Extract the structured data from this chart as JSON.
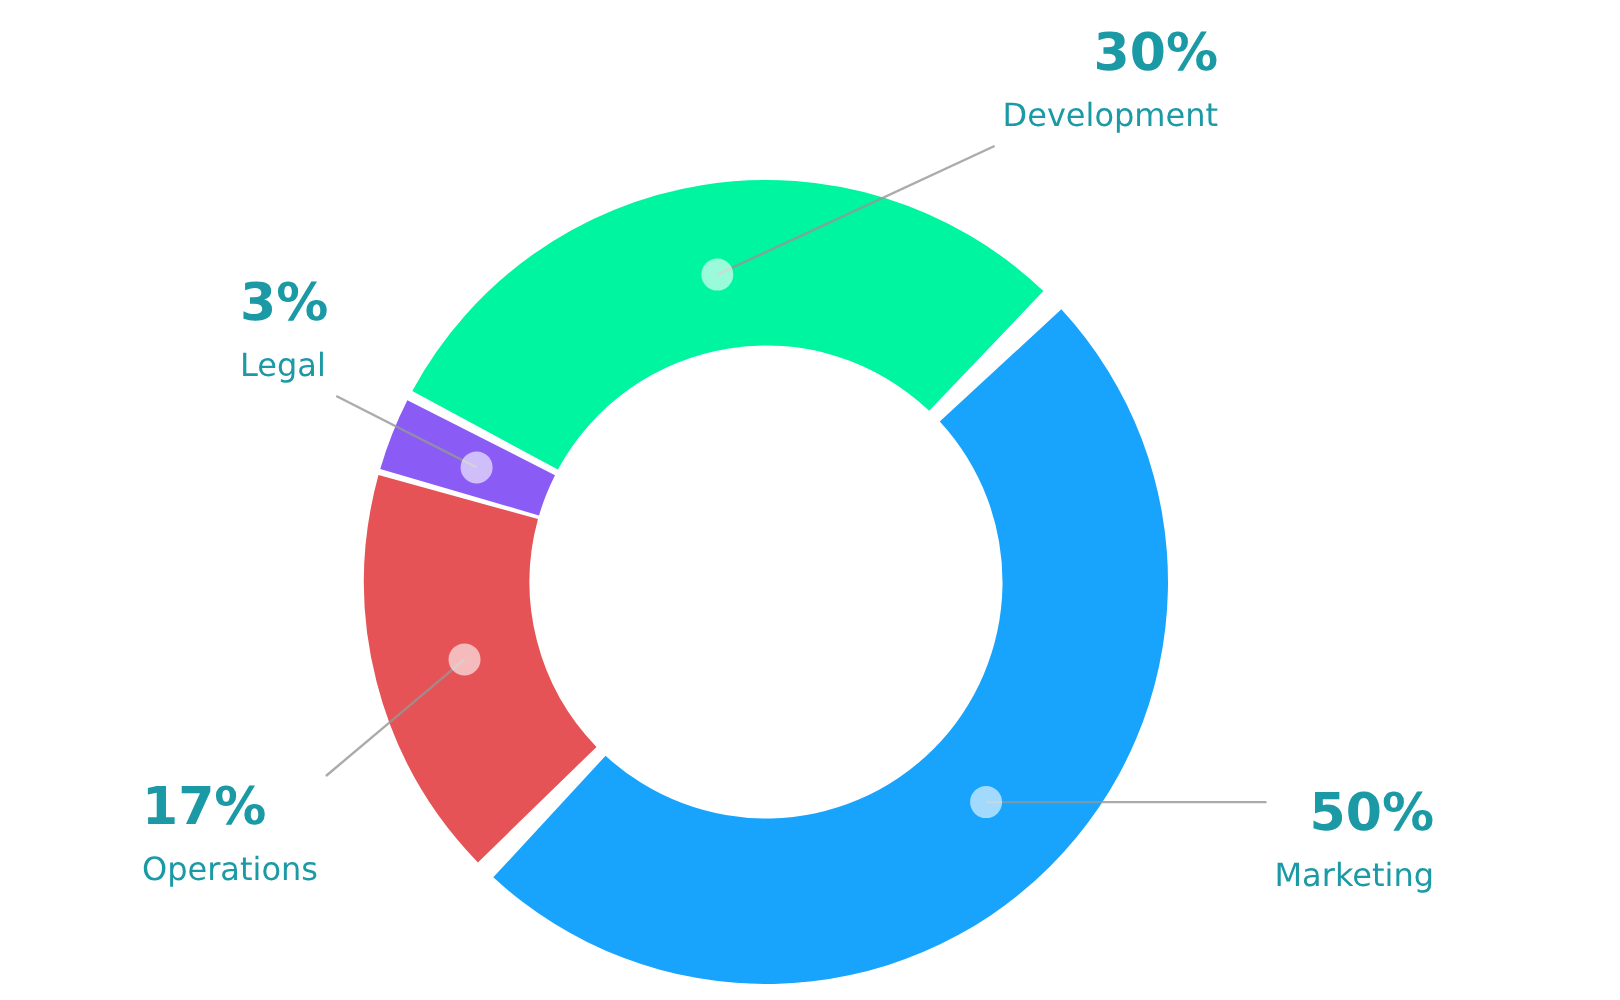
{
  "chart_data": {
    "type": "donut",
    "categories": [
      "Marketing",
      "Operations",
      "Legal",
      "Development"
    ],
    "values": [
      50,
      17,
      3,
      30
    ],
    "colors": [
      "#18a4fc",
      "#e55356",
      "#8a5cf5",
      "#00f5a0"
    ],
    "value_labels": [
      "50%",
      "17%",
      "3%",
      "30%"
    ],
    "legend": false
  }
}
